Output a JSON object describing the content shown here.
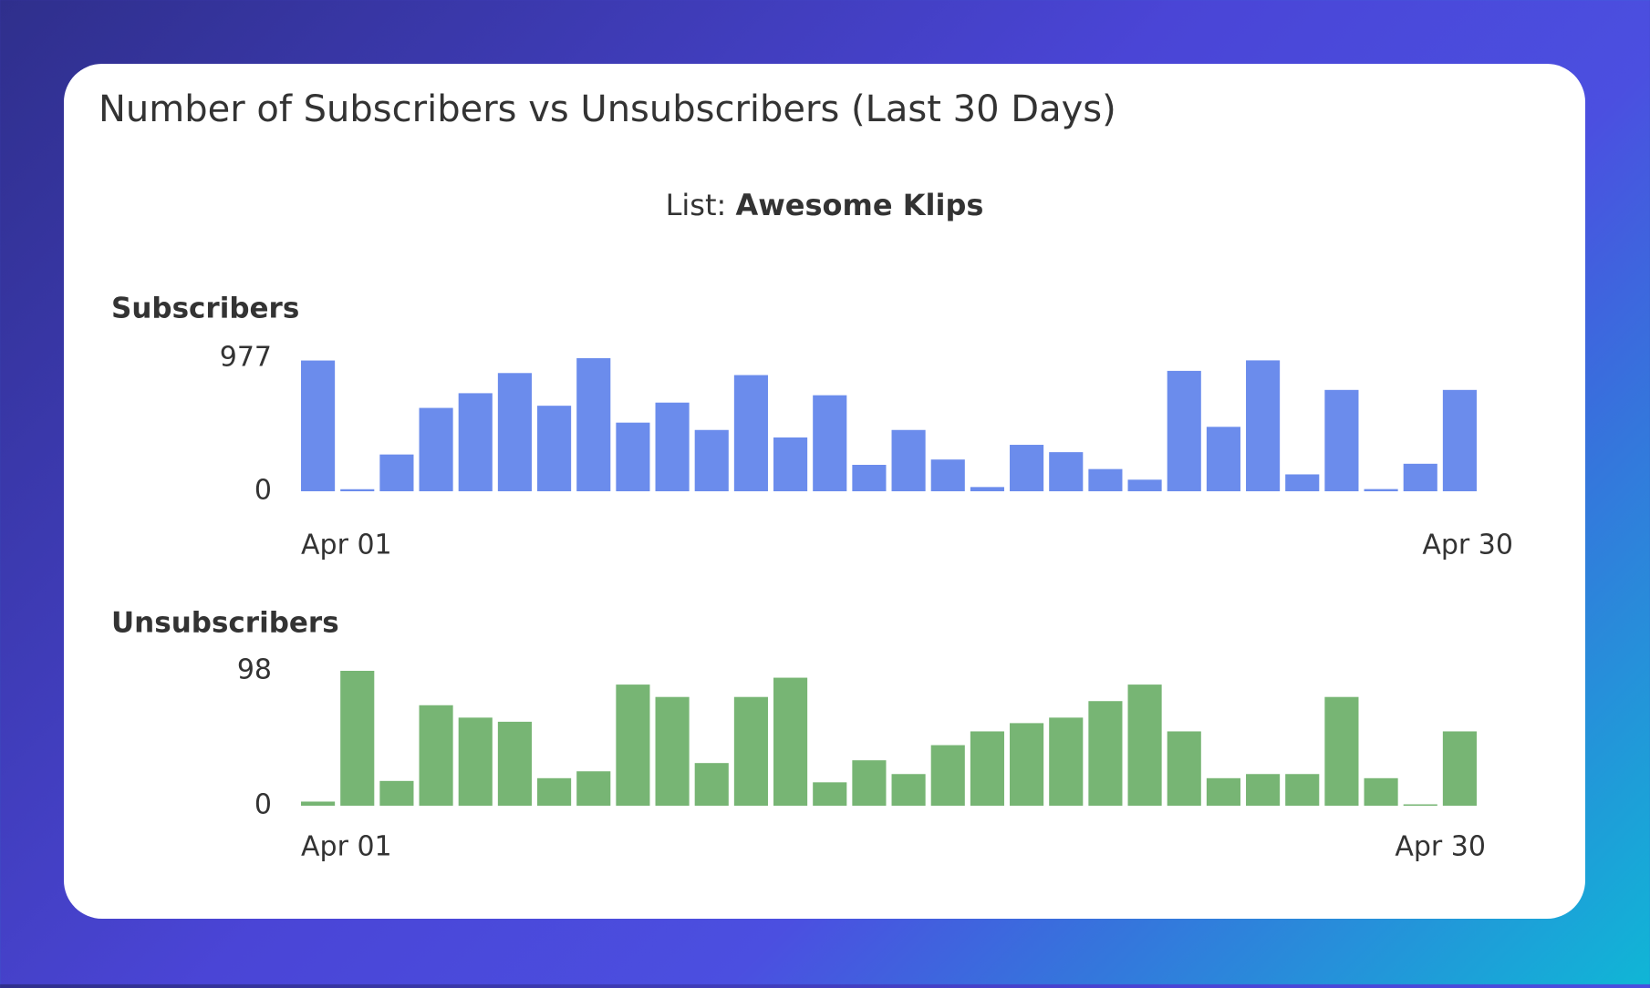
{
  "header": {
    "title": "Number of Subscribers vs Unsubscribers (Last 30 Days)",
    "list_label": "List:",
    "list_name": "Awesome Klips"
  },
  "chart_data": [
    {
      "type": "bar",
      "title": "Subscribers",
      "color": "#6b8cec",
      "categories": [
        "Apr 01",
        null,
        null,
        null,
        null,
        null,
        null,
        null,
        null,
        null,
        null,
        null,
        null,
        null,
        null,
        null,
        null,
        null,
        null,
        null,
        null,
        null,
        null,
        null,
        null,
        null,
        null,
        null,
        null,
        "Apr 30"
      ],
      "values": [
        960,
        15,
        270,
        612,
        720,
        868,
        628,
        977,
        504,
        651,
        450,
        853,
        395,
        705,
        194,
        450,
        233,
        31,
        341,
        287,
        163,
        85,
        884,
        473,
        961,
        124,
        744,
        16,
        202,
        744
      ],
      "ylim": [
        0,
        977
      ],
      "yticks": [
        0,
        977
      ],
      "grid": false
    },
    {
      "type": "bar",
      "title": "Unsubscribers",
      "color": "#77b574",
      "categories": [
        "Apr 01",
        null,
        null,
        null,
        null,
        null,
        null,
        null,
        null,
        null,
        null,
        null,
        null,
        null,
        null,
        null,
        null,
        null,
        null,
        null,
        null,
        null,
        null,
        null,
        null,
        null,
        null,
        null,
        null,
        "Apr 30"
      ],
      "values": [
        3,
        98,
        18,
        73,
        64,
        61,
        20,
        25,
        88,
        79,
        31,
        79,
        93,
        17,
        33,
        23,
        44,
        54,
        60,
        64,
        76,
        88,
        54,
        20,
        23,
        23,
        79,
        20,
        1,
        54
      ],
      "ylim": [
        0,
        98
      ],
      "yticks": [
        0,
        98
      ],
      "grid": false
    }
  ]
}
